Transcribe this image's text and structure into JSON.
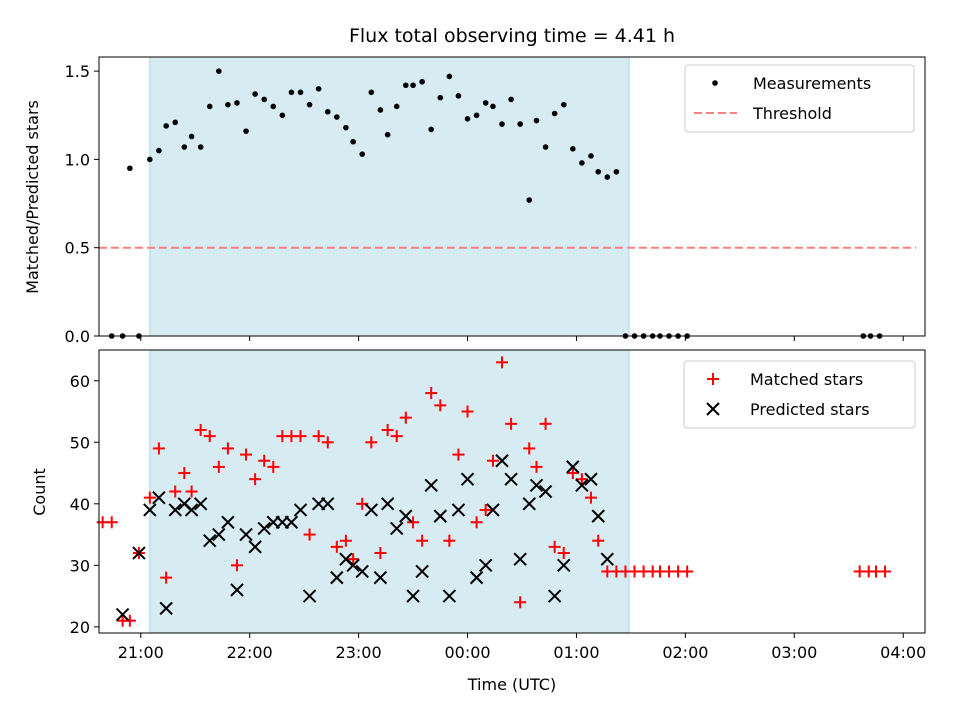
{
  "chart_data": {
    "title": "Flux total observing time = 4.41 h",
    "xlabel": "Time (UTC)",
    "x_ticks": [
      "21:00",
      "22:00",
      "23:00",
      "00:00",
      "01:00",
      "02:00",
      "03:00",
      "04:00"
    ],
    "x_range": [
      "20:37",
      "04:12"
    ],
    "shaded_interval": [
      "21:05",
      "01:29"
    ],
    "shade_color": "#add8e6",
    "top": {
      "type": "scatter",
      "ylabel": "Matched/Predicted stars",
      "ylim": [
        0.0,
        1.58
      ],
      "y_ticks": [
        "0.0",
        "0.5",
        "1.0",
        "1.5"
      ],
      "legend": "top-right",
      "series": [
        {
          "name": "Measurements",
          "color": "#000000",
          "marker": "dot",
          "points": [
            [
              "20:44",
              0.0
            ],
            [
              "20:50",
              0.0
            ],
            [
              "20:54",
              0.95
            ],
            [
              "20:59",
              0.0
            ],
            [
              "21:05",
              1.0
            ],
            [
              "21:10",
              1.05
            ],
            [
              "21:14",
              1.19
            ],
            [
              "21:19",
              1.21
            ],
            [
              "21:24",
              1.07
            ],
            [
              "21:28",
              1.13
            ],
            [
              "21:33",
              1.07
            ],
            [
              "21:38",
              1.3
            ],
            [
              "21:43",
              1.5
            ],
            [
              "21:48",
              1.31
            ],
            [
              "21:53",
              1.32
            ],
            [
              "21:58",
              1.16
            ],
            [
              "22:03",
              1.37
            ],
            [
              "22:08",
              1.34
            ],
            [
              "22:13",
              1.3
            ],
            [
              "22:18",
              1.25
            ],
            [
              "22:23",
              1.38
            ],
            [
              "22:28",
              1.38
            ],
            [
              "22:33",
              1.31
            ],
            [
              "22:38",
              1.4
            ],
            [
              "22:43",
              1.27
            ],
            [
              "22:48",
              1.24
            ],
            [
              "22:53",
              1.18
            ],
            [
              "22:57",
              1.1
            ],
            [
              "23:02",
              1.03
            ],
            [
              "23:07",
              1.38
            ],
            [
              "23:12",
              1.28
            ],
            [
              "23:16",
              1.14
            ],
            [
              "23:21",
              1.3
            ],
            [
              "23:26",
              1.42
            ],
            [
              "23:30",
              1.42
            ],
            [
              "23:35",
              1.44
            ],
            [
              "23:40",
              1.17
            ],
            [
              "23:45",
              1.35
            ],
            [
              "23:50",
              1.47
            ],
            [
              "23:55",
              1.36
            ],
            [
              "00:00",
              1.23
            ],
            [
              "00:05",
              1.25
            ],
            [
              "00:10",
              1.32
            ],
            [
              "00:14",
              1.3
            ],
            [
              "00:19",
              1.2
            ],
            [
              "00:24",
              1.34
            ],
            [
              "00:29",
              1.2
            ],
            [
              "00:34",
              0.77
            ],
            [
              "00:38",
              1.22
            ],
            [
              "00:43",
              1.07
            ],
            [
              "00:48",
              1.26
            ],
            [
              "00:53",
              1.31
            ],
            [
              "00:58",
              1.06
            ],
            [
              "01:03",
              0.98
            ],
            [
              "01:08",
              1.02
            ],
            [
              "01:12",
              0.93
            ],
            [
              "01:17",
              0.9
            ],
            [
              "01:22",
              0.93
            ],
            [
              "01:27",
              0.0
            ],
            [
              "01:32",
              0.0
            ],
            [
              "01:37",
              0.0
            ],
            [
              "01:42",
              0.0
            ],
            [
              "01:46",
              0.0
            ],
            [
              "01:51",
              0.0
            ],
            [
              "01:56",
              0.0
            ],
            [
              "02:01",
              0.0
            ],
            [
              "03:38",
              0.0
            ],
            [
              "03:42",
              0.0
            ],
            [
              "03:47",
              0.0
            ]
          ]
        },
        {
          "name": "Threshold",
          "color": "#ff7f7f",
          "line": "dashed",
          "points": [
            [
              "20:37",
              0.5
            ],
            [
              "04:07",
              0.5
            ]
          ]
        }
      ]
    },
    "bottom": {
      "type": "scatter",
      "ylabel": "Count",
      "ylim": [
        19,
        65
      ],
      "y_ticks": [
        "20",
        "30",
        "40",
        "50",
        "60"
      ],
      "legend": "top-right",
      "series": [
        {
          "name": "Matched stars",
          "color": "#ff0000",
          "marker": "plus",
          "points": [
            [
              "20:39",
              37
            ],
            [
              "20:44",
              37
            ],
            [
              "20:50",
              21
            ],
            [
              "20:54",
              21
            ],
            [
              "20:59",
              32
            ],
            [
              "21:05",
              41
            ],
            [
              "21:10",
              49
            ],
            [
              "21:14",
              28
            ],
            [
              "21:19",
              42
            ],
            [
              "21:24",
              45
            ],
            [
              "21:28",
              42
            ],
            [
              "21:33",
              52
            ],
            [
              "21:38",
              51
            ],
            [
              "21:43",
              46
            ],
            [
              "21:48",
              49
            ],
            [
              "21:53",
              30
            ],
            [
              "21:58",
              48
            ],
            [
              "22:03",
              44
            ],
            [
              "22:08",
              47
            ],
            [
              "22:13",
              46
            ],
            [
              "22:18",
              51
            ],
            [
              "22:23",
              51
            ],
            [
              "22:28",
              51
            ],
            [
              "22:33",
              35
            ],
            [
              "22:38",
              51
            ],
            [
              "22:43",
              50
            ],
            [
              "22:48",
              33
            ],
            [
              "22:53",
              34
            ],
            [
              "22:57",
              31
            ],
            [
              "23:02",
              40
            ],
            [
              "23:07",
              50
            ],
            [
              "23:12",
              32
            ],
            [
              "23:16",
              52
            ],
            [
              "23:21",
              51
            ],
            [
              "23:26",
              54
            ],
            [
              "23:30",
              37
            ],
            [
              "23:35",
              34
            ],
            [
              "23:40",
              58
            ],
            [
              "23:45",
              56
            ],
            [
              "23:50",
              34
            ],
            [
              "23:55",
              48
            ],
            [
              "00:00",
              55
            ],
            [
              "00:05",
              37
            ],
            [
              "00:10",
              39
            ],
            [
              "00:14",
              47
            ],
            [
              "00:19",
              63
            ],
            [
              "00:24",
              53
            ],
            [
              "00:29",
              24
            ],
            [
              "00:34",
              49
            ],
            [
              "00:38",
              46
            ],
            [
              "00:43",
              53
            ],
            [
              "00:48",
              33
            ],
            [
              "00:53",
              32
            ],
            [
              "00:58",
              45
            ],
            [
              "01:03",
              44
            ],
            [
              "01:08",
              41
            ],
            [
              "01:12",
              34
            ],
            [
              "01:17",
              29
            ],
            [
              "01:22",
              29
            ],
            [
              "01:27",
              29
            ],
            [
              "01:32",
              29
            ],
            [
              "01:37",
              29
            ],
            [
              "01:42",
              29
            ],
            [
              "01:46",
              29
            ],
            [
              "01:51",
              29
            ],
            [
              "01:56",
              29
            ],
            [
              "02:01",
              29
            ],
            [
              "03:36",
              29
            ],
            [
              "03:41",
              29
            ],
            [
              "03:45",
              29
            ],
            [
              "03:50",
              29
            ]
          ]
        },
        {
          "name": "Predicted stars",
          "color": "#000000",
          "marker": "x",
          "points": [
            [
              "20:50",
              22
            ],
            [
              "20:59",
              32
            ],
            [
              "21:05",
              39
            ],
            [
              "21:10",
              41
            ],
            [
              "21:14",
              23
            ],
            [
              "21:19",
              39
            ],
            [
              "21:24",
              40
            ],
            [
              "21:28",
              39
            ],
            [
              "21:33",
              40
            ],
            [
              "21:38",
              34
            ],
            [
              "21:43",
              35
            ],
            [
              "21:48",
              37
            ],
            [
              "21:53",
              26
            ],
            [
              "21:58",
              35
            ],
            [
              "22:03",
              33
            ],
            [
              "22:08",
              36
            ],
            [
              "22:13",
              37
            ],
            [
              "22:18",
              37
            ],
            [
              "22:23",
              37
            ],
            [
              "22:28",
              39
            ],
            [
              "22:33",
              25
            ],
            [
              "22:38",
              40
            ],
            [
              "22:43",
              40
            ],
            [
              "22:48",
              28
            ],
            [
              "22:53",
              31
            ],
            [
              "22:57",
              30
            ],
            [
              "23:02",
              29
            ],
            [
              "23:07",
              39
            ],
            [
              "23:12",
              28
            ],
            [
              "23:16",
              40
            ],
            [
              "23:21",
              36
            ],
            [
              "23:26",
              38
            ],
            [
              "23:30",
              25
            ],
            [
              "23:35",
              29
            ],
            [
              "23:40",
              43
            ],
            [
              "23:45",
              38
            ],
            [
              "23:50",
              25
            ],
            [
              "23:55",
              39
            ],
            [
              "00:00",
              44
            ],
            [
              "00:05",
              28
            ],
            [
              "00:10",
              30
            ],
            [
              "00:14",
              39
            ],
            [
              "00:19",
              47
            ],
            [
              "00:24",
              44
            ],
            [
              "00:29",
              31
            ],
            [
              "00:34",
              40
            ],
            [
              "00:38",
              43
            ],
            [
              "00:43",
              42
            ],
            [
              "00:48",
              25
            ],
            [
              "00:53",
              30
            ],
            [
              "00:58",
              46
            ],
            [
              "01:03",
              43
            ],
            [
              "01:08",
              44
            ],
            [
              "01:12",
              38
            ],
            [
              "01:17",
              31
            ]
          ]
        }
      ]
    }
  }
}
